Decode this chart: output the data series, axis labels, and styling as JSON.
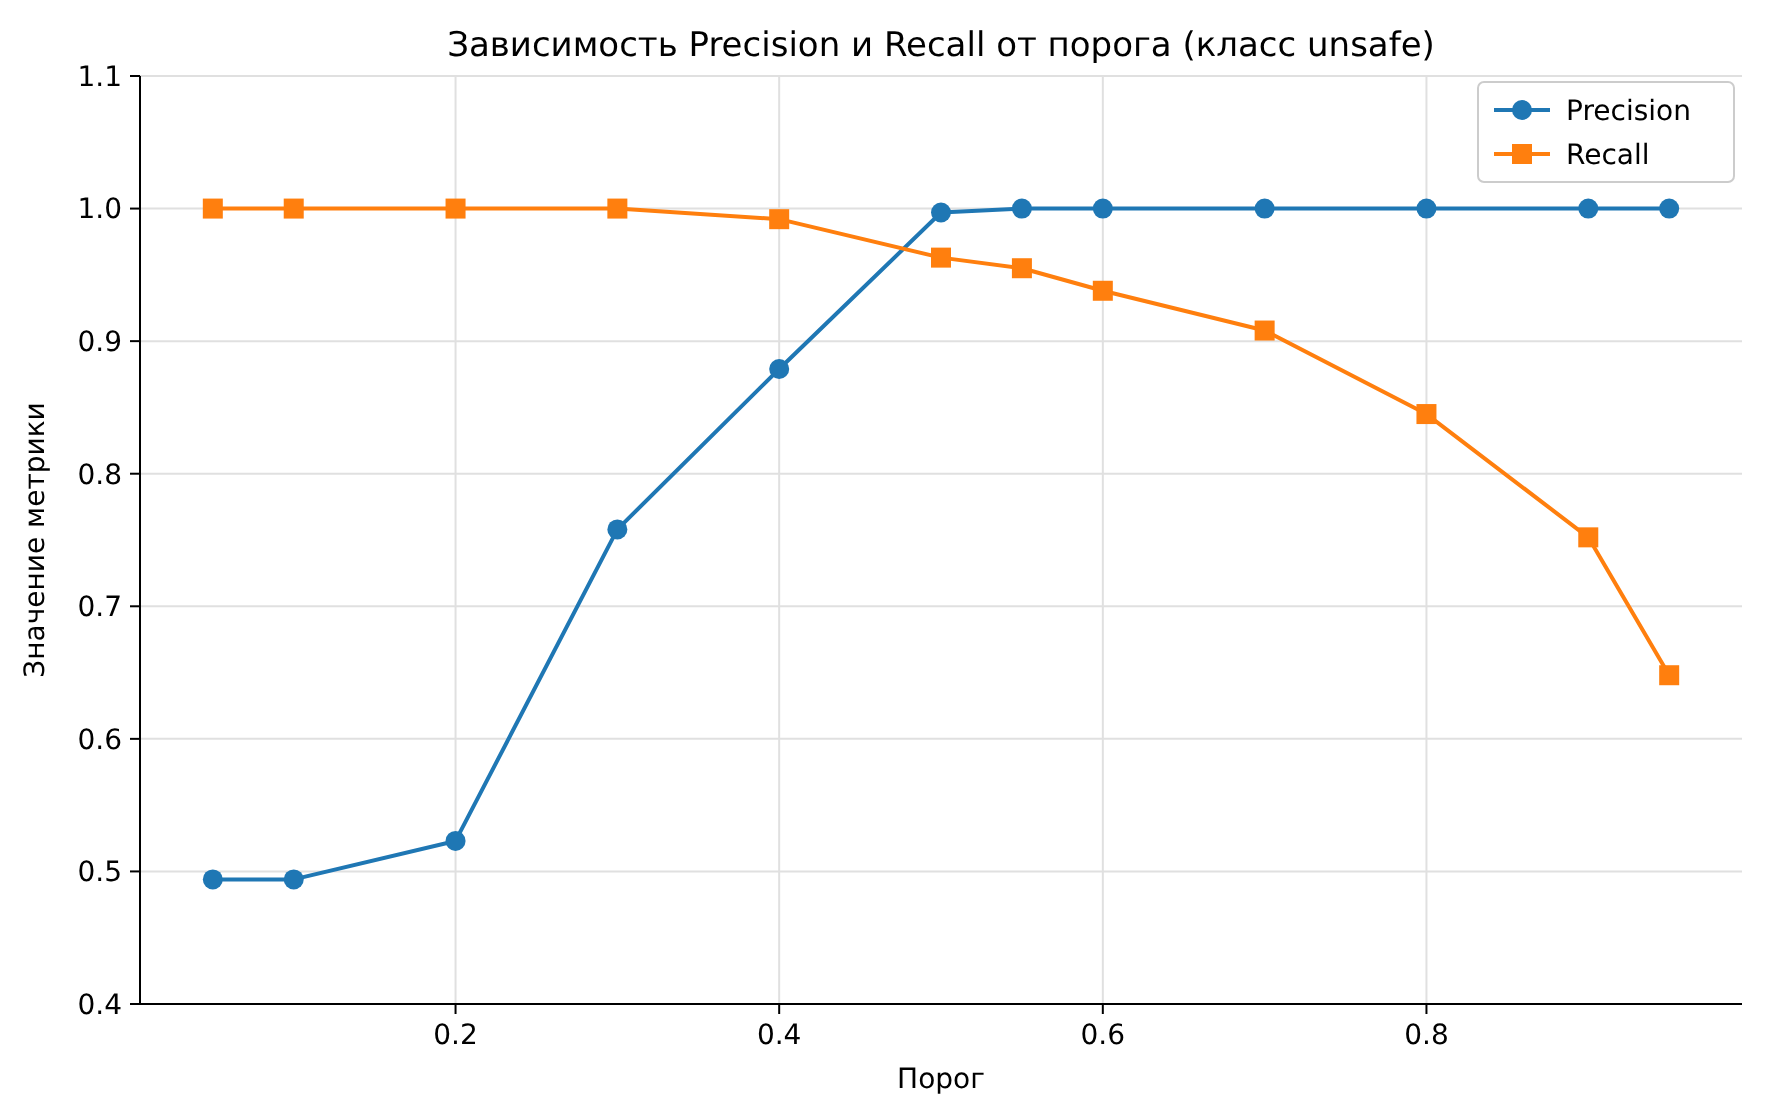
{
  "chart_data": {
    "type": "line",
    "title": "Зависимость Precision и Recall от порога (класс unsafe)",
    "xlabel": "Порог",
    "ylabel": "Значение метрики",
    "x": [
      0.05,
      0.1,
      0.2,
      0.3,
      0.4,
      0.5,
      0.55,
      0.6,
      0.7,
      0.8,
      0.9,
      0.95
    ],
    "series": [
      {
        "name": "Precision",
        "color": "#1f77b4",
        "marker": "circle",
        "values": [
          0.494,
          0.494,
          0.523,
          0.758,
          0.879,
          0.997,
          1.0,
          1.0,
          1.0,
          1.0,
          1.0,
          1.0
        ]
      },
      {
        "name": "Recall",
        "color": "#ff7f0e",
        "marker": "square",
        "values": [
          1.0,
          1.0,
          1.0,
          1.0,
          0.992,
          0.963,
          0.955,
          0.938,
          0.908,
          0.845,
          0.752,
          0.648
        ]
      }
    ],
    "xlim": [
      0.005,
      0.995
    ],
    "ylim": [
      0.4,
      1.1
    ],
    "xticks": [
      0.2,
      0.4,
      0.6,
      0.8
    ],
    "yticks": [
      {
        "value": 0.4,
        "label": "0.4"
      },
      {
        "value": 0.5,
        "label": "0.5"
      },
      {
        "value": 0.6,
        "label": "0.6"
      },
      {
        "value": 0.7,
        "label": "0.7"
      },
      {
        "value": 0.8,
        "label": "0.8"
      },
      {
        "value": 0.9,
        "label": "0.9"
      },
      {
        "value": 1.0,
        "label": "1.0"
      },
      {
        "value": 1.1,
        "label": "1.1"
      }
    ],
    "grid": true,
    "legend": "top right",
    "line_style": "solid"
  }
}
